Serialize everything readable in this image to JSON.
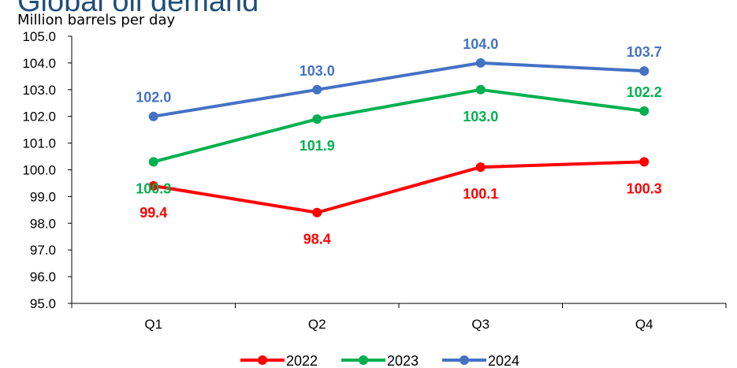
{
  "chart_data": {
    "type": "line",
    "title": "Global oil demand",
    "ylabel": "Million barrels per day",
    "xlabel": "",
    "categories": [
      "Q1",
      "Q2",
      "Q3",
      "Q4"
    ],
    "ylim": [
      95.0,
      105.0
    ],
    "yticks": [
      "105.0",
      "104.0",
      "103.0",
      "102.0",
      "101.0",
      "100.0",
      "99.0",
      "98.0",
      "97.0",
      "96.0",
      "95.0"
    ],
    "grid": false,
    "legend_position": "bottom",
    "series": [
      {
        "name": "2022",
        "color": "#ff0000",
        "values": [
          99.4,
          98.4,
          100.1,
          100.3
        ],
        "labels": [
          "99.4",
          "98.4",
          "100.1",
          "100.3"
        ],
        "label_side": [
          "below",
          "below",
          "below",
          "below"
        ]
      },
      {
        "name": "2023",
        "color": "#00b050",
        "values": [
          100.3,
          101.9,
          103.0,
          102.2
        ],
        "labels": [
          "100.3",
          "101.9",
          "103.0",
          "102.2"
        ],
        "label_side": [
          "below",
          "below",
          "below",
          "above"
        ]
      },
      {
        "name": "2024",
        "color": "#4472c4",
        "values": [
          102.0,
          103.0,
          104.0,
          103.7
        ],
        "labels": [
          "102.0",
          "103.0",
          "104.0",
          "103.7"
        ],
        "label_side": [
          "above",
          "above",
          "above",
          "above"
        ]
      }
    ]
  }
}
